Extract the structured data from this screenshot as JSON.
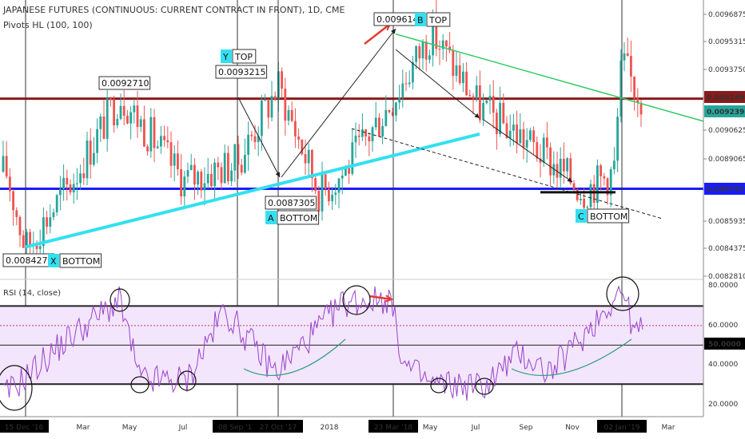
{
  "header": {
    "title": "JAPANESE FUTURES (CONTINUOUS: CURRENT CONTRACT IN FRONT), 1D, CME",
    "indicator": "Pivots HL (100, 100)"
  },
  "colors": {
    "candle_up": "#26a69a",
    "candle_down": "#ef5350",
    "resistance": "#8b1a1a",
    "support": "#1a1aff",
    "uptrend": "#33e0f0",
    "downtrend": "#33cc66",
    "rsi_line": "#9944cc",
    "rsi_fill": "#f3e5fb",
    "arrow": "#e53935"
  },
  "chart_data": [
    {
      "type": "candlestick",
      "title": "JAPANESE FUTURES (CONTINUOUS: CURRENT CONTRACT IN FRONT), 1D, CME",
      "ylim": [
        0.008281,
        0.009768
      ],
      "y_ticks": [
        "0.0096875",
        "0.0095315",
        "0.0093750",
        "0.0092185",
        "0.0090625",
        "0.0089065",
        "0.0087505",
        "0.0085935",
        "0.0084375",
        "0.0082810"
      ],
      "highlighted_levels": [
        {
          "value": "0.0092480",
          "color": "#8b1a1a"
        },
        {
          "value": "0.0092395",
          "color": "#26a69a"
        },
        {
          "value": "0.0087570",
          "color": "#1a1aff"
        }
      ],
      "x_ticks": [
        "15 Dec '16",
        "Mar",
        "May",
        "Jul",
        "08 Sep '17",
        "27 Oct '17",
        "2018",
        "M",
        "23 Mar '18",
        "May",
        "Jul",
        "Sep",
        "Nov",
        "02 Jan '19",
        "Mar"
      ],
      "x_ticks_highlighted": [
        "15 Dec '16",
        "08 Sep '17",
        "27 Oct '17",
        "23 Mar '18",
        "02 Jan '19"
      ],
      "pivot_labels": [
        {
          "price": "0.0092710",
          "tag": "",
          "text": ""
        },
        {
          "price": "0.0093215",
          "tag": "Y",
          "text": "TOP"
        },
        {
          "price": "0.0096145",
          "tag": "B",
          "text": "TOP"
        },
        {
          "price": "0.0087305",
          "tag": "A",
          "text": "BOTTOM"
        },
        {
          "price": "",
          "tag": "C",
          "text": "BOTTOM"
        },
        {
          "price": "0.0084275",
          "tag": "X",
          "text": "BOTTOM"
        }
      ],
      "anchor_points": [
        {
          "date": "15 Dec '16",
          "close": 0.00885
        },
        {
          "date": "late Dec '16",
          "close": 0.00843
        },
        {
          "date": "Feb '17",
          "close": 0.0088
        },
        {
          "date": "Apr '17",
          "close": 0.00927
        },
        {
          "date": "May '17",
          "close": 0.0088
        },
        {
          "date": "Jul '17",
          "close": 0.0089
        },
        {
          "date": "08 Sep '17",
          "close": 0.00932
        },
        {
          "date": "27 Oct '17",
          "close": 0.00873
        },
        {
          "date": "Dec '17",
          "close": 0.00885
        },
        {
          "date": "Feb '18",
          "close": 0.00925
        },
        {
          "date": "23 Mar '18",
          "close": 0.00961
        },
        {
          "date": "May '18",
          "close": 0.0092
        },
        {
          "date": "Jul '18",
          "close": 0.00905
        },
        {
          "date": "Sep '18",
          "close": 0.0089
        },
        {
          "date": "Oct '18",
          "close": 0.00875
        },
        {
          "date": "Dec '18",
          "close": 0.00885
        },
        {
          "date": "02 Jan '19",
          "close": 0.00945
        },
        {
          "date": "Jan '19",
          "close": 0.0093
        },
        {
          "date": "Feb '19",
          "close": 0.00924
        }
      ]
    },
    {
      "type": "line",
      "title": "RSI (14, close)",
      "ylim": [
        15,
        82
      ],
      "y_ticks": [
        "80.0000",
        "60.0000",
        "50.0000",
        "40.0000",
        "20.0000"
      ],
      "highlighted_levels": [
        {
          "value": "50.0000"
        }
      ],
      "bands": [
        70,
        30
      ],
      "anchor_points": [
        {
          "date": "15 Dec '16",
          "rsi": 25
        },
        {
          "date": "Feb '17",
          "rsi": 55
        },
        {
          "date": "Apr '17",
          "rsi": 73
        },
        {
          "date": "May '17",
          "rsi": 32
        },
        {
          "date": "Jul '17",
          "rsi": 32
        },
        {
          "date": "Aug '17",
          "rsi": 68
        },
        {
          "date": "Oct '17",
          "rsi": 36
        },
        {
          "date": "Feb '18",
          "rsi": 72
        },
        {
          "date": "23 Mar '18",
          "rsi": 74
        },
        {
          "date": "Apr '18",
          "rsi": 40
        },
        {
          "date": "May '18",
          "rsi": 30
        },
        {
          "date": "Jul '18",
          "rsi": 29
        },
        {
          "date": "Sep '18",
          "rsi": 46
        },
        {
          "date": "Oct '18",
          "rsi": 36
        },
        {
          "date": "Nov '18",
          "rsi": 55
        },
        {
          "date": "02 Jan '19",
          "rsi": 79
        },
        {
          "date": "Jan '19",
          "rsi": 55
        },
        {
          "date": "Feb '19",
          "rsi": 60
        }
      ]
    }
  ]
}
